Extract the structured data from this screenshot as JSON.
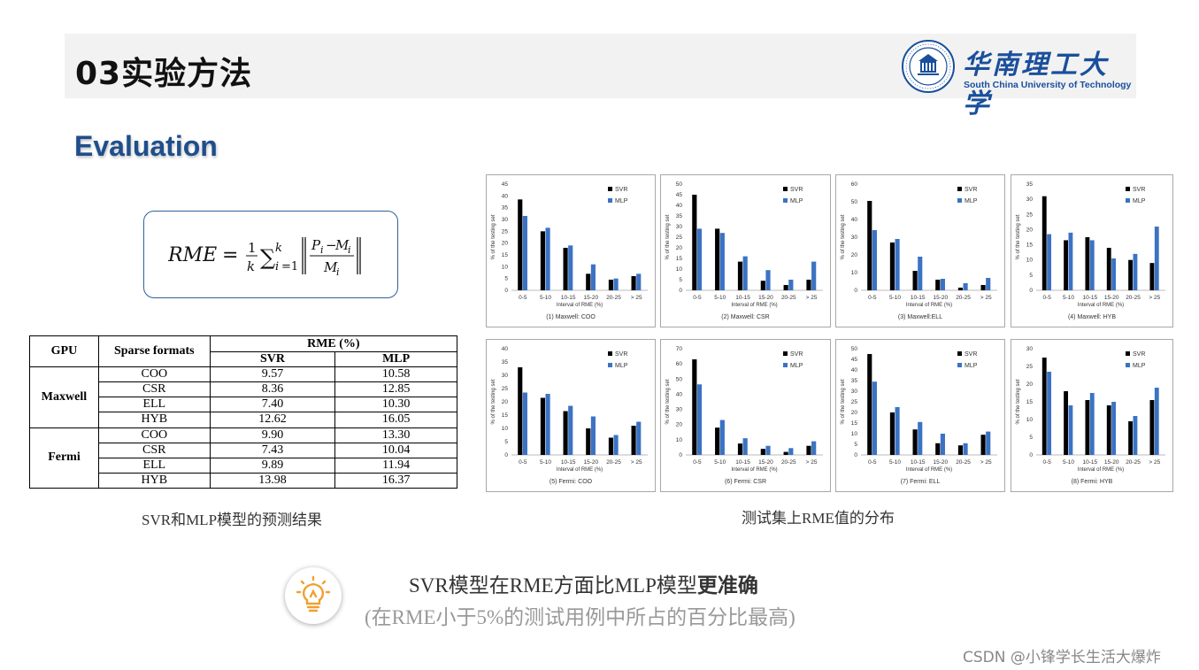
{
  "header": {
    "title": "03实验方法"
  },
  "logo": {
    "name_cn": "华南理工大学",
    "name_en": "South China University of Technology"
  },
  "section": {
    "title": "Evaluation"
  },
  "formula": {
    "lhs": "RME",
    "text": "RME = 1/k Σ_{i=1}^{k} |(P_i − M_i)/M_i|"
  },
  "table": {
    "header": {
      "gpu": "GPU",
      "formats": "Sparse formats",
      "rme": "RME (%)",
      "svr": "SVR",
      "mlp": "MLP"
    },
    "groups": [
      {
        "gpu": "Maxwell",
        "rows": [
          {
            "format": "COO",
            "svr": "9.57",
            "mlp": "10.58"
          },
          {
            "format": "CSR",
            "svr": "8.36",
            "mlp": "12.85"
          },
          {
            "format": "ELL",
            "svr": "7.40",
            "mlp": "10.30"
          },
          {
            "format": "HYB",
            "svr": "12.62",
            "mlp": "16.05"
          }
        ]
      },
      {
        "gpu": "Fermi",
        "rows": [
          {
            "format": "COO",
            "svr": "9.90",
            "mlp": "13.30"
          },
          {
            "format": "CSR",
            "svr": "7.43",
            "mlp": "10.04"
          },
          {
            "format": "ELL",
            "svr": "9.89",
            "mlp": "11.94"
          },
          {
            "format": "HYB",
            "svr": "13.98",
            "mlp": "16.37"
          }
        ]
      }
    ]
  },
  "captions": {
    "table": "SVR和MLP模型的预测结果",
    "charts": "测试集上RME值的分布"
  },
  "conclusion": {
    "main_prefix": "SVR模型在RME方面比MLP模型",
    "main_bold": "更准确",
    "sub": "(在RME小于5%的测试用例中所占的百分比最高)"
  },
  "watermark": "CSDN @小锋学长生活大爆炸",
  "colors": {
    "svr": "#000000",
    "mlp": "#3b73c4",
    "accent": "#1f4e8c",
    "bulb": "#f0a030"
  },
  "chart_data": [
    {
      "type": "bar",
      "title": "(1) Maxwell: COO",
      "xlabel": "Interval of RME (%)",
      "ylabel": "% of the testing set",
      "ylim": [
        0,
        45
      ],
      "ystep": 5,
      "categories": [
        "0-5",
        "5-10",
        "10-15",
        "15-20",
        "20-25",
        "> 25"
      ],
      "series": [
        {
          "name": "SVR",
          "values": [
            38.5,
            25,
            18,
            7,
            4.5,
            6
          ]
        },
        {
          "name": "MLP",
          "values": [
            31.5,
            26.5,
            19,
            11,
            5,
            7
          ]
        }
      ]
    },
    {
      "type": "bar",
      "title": "(2) Maxwell: CSR",
      "xlabel": "Interval of RME (%)",
      "ylabel": "% of the testing set",
      "ylim": [
        0,
        50
      ],
      "ystep": 5,
      "categories": [
        "0-5",
        "5-10",
        "10-15",
        "15-20",
        "20-25",
        "> 25"
      ],
      "series": [
        {
          "name": "SVR",
          "values": [
            45,
            29,
            13.5,
            4.5,
            2.5,
            5
          ]
        },
        {
          "name": "MLP",
          "values": [
            29,
            27,
            16,
            9.5,
            5,
            13.5
          ]
        }
      ]
    },
    {
      "type": "bar",
      "title": "(3) Maxwell:ELL",
      "xlabel": "Interval of RME (%)",
      "ylabel": "% of the testing set",
      "ylim": [
        0,
        60
      ],
      "ystep": 10,
      "categories": [
        "0-5",
        "5-10",
        "10-15",
        "15-20",
        "20-25",
        "> 25"
      ],
      "series": [
        {
          "name": "SVR",
          "values": [
            50.5,
            27,
            11,
            6,
            1.5,
            3
          ]
        },
        {
          "name": "MLP",
          "values": [
            34,
            29,
            19,
            6.5,
            4,
            7
          ]
        }
      ]
    },
    {
      "type": "bar",
      "title": "(4) Maxwell: HYB",
      "xlabel": "Interval of RME (%)",
      "ylabel": "% of the testing set",
      "ylim": [
        0,
        35
      ],
      "ystep": 5,
      "categories": [
        "0-5",
        "5-10",
        "10-15",
        "15-20",
        "20-25",
        "> 25"
      ],
      "series": [
        {
          "name": "SVR",
          "values": [
            31,
            16.5,
            17.5,
            14,
            10,
            9
          ]
        },
        {
          "name": "MLP",
          "values": [
            18.5,
            19,
            16.5,
            10.5,
            12,
            21
          ]
        }
      ]
    },
    {
      "type": "bar",
      "title": "(5) Fermi: COO",
      "xlabel": "Interval of RME (%)",
      "ylabel": "% of the testing set",
      "ylim": [
        0,
        40
      ],
      "ystep": 5,
      "categories": [
        "0-5",
        "5-10",
        "10-15",
        "15-20",
        "20-25",
        "> 25"
      ],
      "series": [
        {
          "name": "SVR",
          "values": [
            33,
            21.5,
            16.5,
            10,
            6.5,
            11
          ]
        },
        {
          "name": "MLP",
          "values": [
            23.5,
            23,
            18.5,
            14.5,
            7.5,
            12.5
          ]
        }
      ]
    },
    {
      "type": "bar",
      "title": "(6) Fermi: CSR",
      "xlabel": "Interval of RME (%)",
      "ylabel": "% of the testing set",
      "ylim": [
        0,
        70
      ],
      "ystep": 10,
      "categories": [
        "0-5",
        "5-10",
        "10-15",
        "15-20",
        "20-25",
        "> 25"
      ],
      "series": [
        {
          "name": "SVR",
          "values": [
            63,
            18,
            7.5,
            4,
            2,
            6
          ]
        },
        {
          "name": "MLP",
          "values": [
            46.5,
            23,
            11,
            6,
            4.5,
            9
          ]
        }
      ]
    },
    {
      "type": "bar",
      "title": "(7) Fermi: ELL",
      "xlabel": "Interval of RME (%)",
      "ylabel": "% of the testing set",
      "ylim": [
        0,
        50
      ],
      "ystep": 5,
      "categories": [
        "0-5",
        "5-10",
        "10-15",
        "15-20",
        "20-25",
        "> 25"
      ],
      "series": [
        {
          "name": "SVR",
          "values": [
            47.5,
            20,
            12,
            5.5,
            4.5,
            9.5
          ]
        },
        {
          "name": "MLP",
          "values": [
            34.5,
            22.5,
            15.5,
            10,
            5.5,
            11
          ]
        }
      ]
    },
    {
      "type": "bar",
      "title": "(8) Fermi: HYB",
      "xlabel": "Interval of RME (%)",
      "ylabel": "% of the testing set",
      "ylim": [
        0,
        30
      ],
      "ystep": 5,
      "categories": [
        "0-5",
        "5-10",
        "10-15",
        "15-20",
        "20-25",
        "> 25"
      ],
      "series": [
        {
          "name": "SVR",
          "values": [
            27.5,
            18,
            15.5,
            14,
            9.5,
            15.5
          ]
        },
        {
          "name": "MLP",
          "values": [
            23.5,
            14,
            17.5,
            15,
            11,
            19
          ]
        }
      ]
    }
  ]
}
